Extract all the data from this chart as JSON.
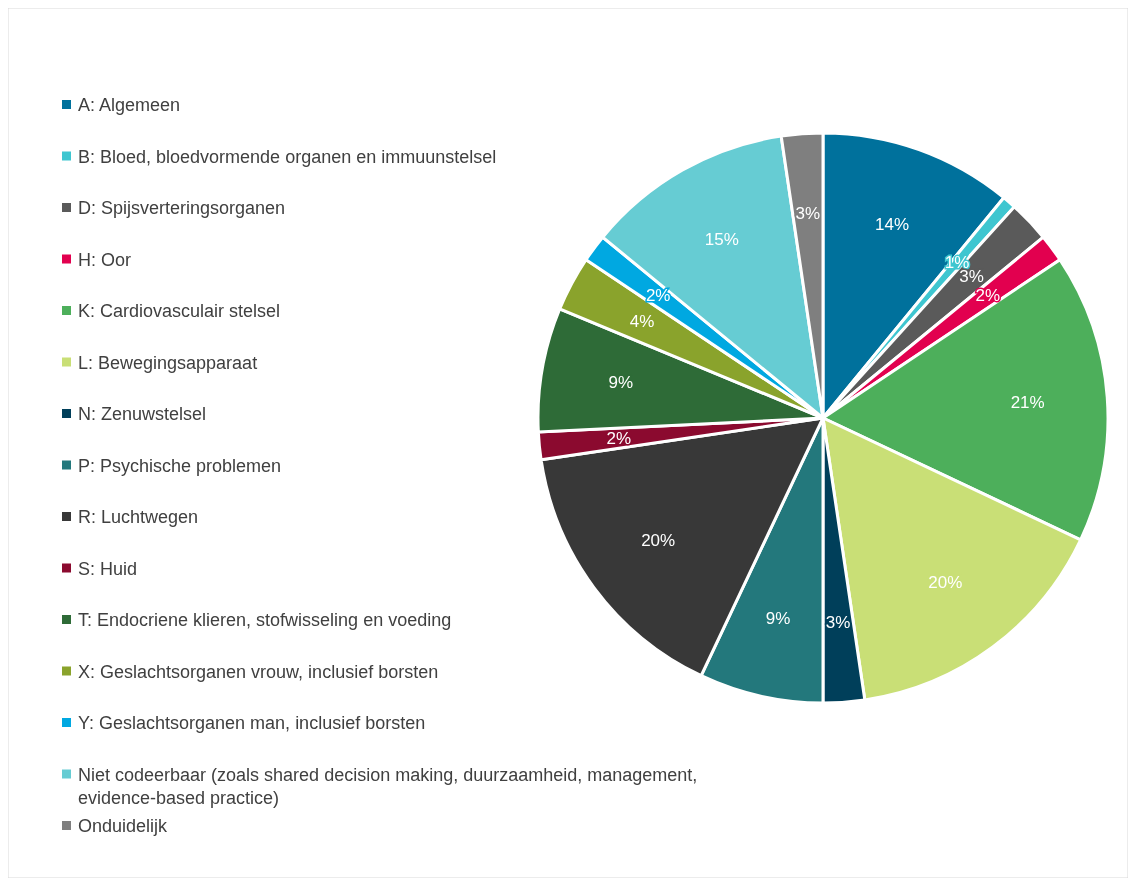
{
  "chart_data": {
    "type": "pie",
    "categories": [
      "A: Algemeen",
      "B: Bloed, bloedvormende organen en immuunstelsel",
      "D: Spijsverteringsorganen",
      "H: Oor",
      "K: Cardiovasculair stelsel",
      "L: Bewegingsapparaat",
      "N: Zenuwstelsel",
      "P: Psychische problemen",
      "R: Luchtwegen",
      "S: Huid",
      "T: Endocriene klieren, stofwisseling en voeding",
      "X: Geslachtsorganen vrouw, inclusief borsten",
      "Y: Geslachtsorganen man, inclusief borsten",
      "Niet codeerbaar (zoals shared decision making, duurzaamheid, management, evidence-based practice)",
      "Onduidelijk"
    ],
    "values": [
      14,
      1,
      3,
      2,
      21,
      20,
      3,
      9,
      20,
      2,
      9,
      4,
      2,
      15,
      3
    ],
    "colors": [
      "#00719c",
      "#3ec6d0",
      "#5a5a5a",
      "#e2004f",
      "#4daf5b",
      "#c9df76",
      "#003f5a",
      "#23787c",
      "#383838",
      "#8b0a2f",
      "#2e6b37",
      "#8aa32c",
      "#00a8e1",
      "#66ccd3",
      "#7f7f7f"
    ],
    "value_labels": [
      "14%",
      "1%",
      "3%",
      "2%",
      "21%",
      "20%",
      "3%",
      "9%",
      "20%",
      "2%",
      "9%",
      "4%",
      "2%",
      "15%",
      "3%"
    ],
    "legend": "left"
  }
}
